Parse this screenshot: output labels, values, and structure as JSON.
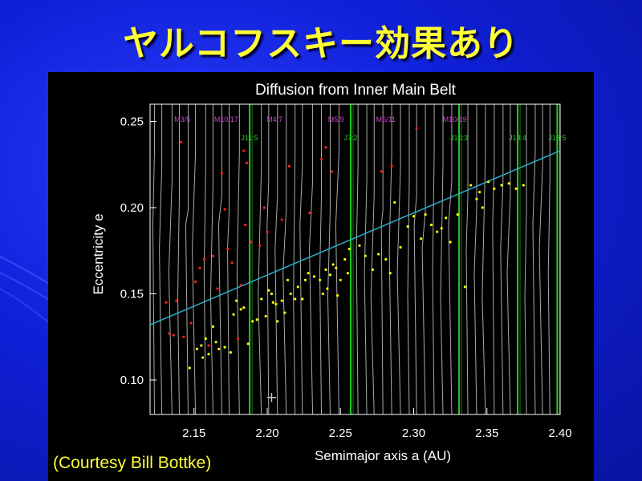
{
  "slide": {
    "title": "ヤルコフスキー効果あり",
    "courtesy": "(Courtesy Bill Bottke)"
  },
  "colors": {
    "background": "#1020d8",
    "title": "#ffff33",
    "resonance_mean_motion": "#c8c8c8",
    "resonance_jupiter": "#22cc22",
    "resonance_mars_labels": "#cc44cc",
    "trend_line": "#2ab0c8",
    "points_yellow": "#ffff00",
    "points_red": "#ff2020"
  },
  "chart_data": {
    "type": "scatter",
    "title": "Diffusion from Inner Main Belt",
    "xlabel": "Semimajor axis a (AU)",
    "ylabel": "Eccentricity e",
    "xlim": [
      2.12,
      2.4
    ],
    "ylim": [
      0.08,
      0.26
    ],
    "xticks": [
      "2.15",
      "2.20",
      "2.25",
      "2.30",
      "2.35",
      "2.40"
    ],
    "yticks": [
      "0.10",
      "0.15",
      "0.20",
      "0.25"
    ],
    "grid": false,
    "resonance_labels_magenta": [
      {
        "label": "M3/5",
        "a": 2.142
      },
      {
        "label": "M10/17",
        "a": 2.172
      },
      {
        "label": "M4/7",
        "a": 2.205
      },
      {
        "label": "M5/9",
        "a": 2.247
      },
      {
        "label": "M6/11",
        "a": 2.281
      },
      {
        "label": "M10/19",
        "a": 2.328
      }
    ],
    "resonance_labels_green": [
      {
        "label": "J11:5",
        "a": 2.188
      },
      {
        "label": "J7:2",
        "a": 2.257
      },
      {
        "label": "J10:3",
        "a": 2.331
      },
      {
        "label": "J13:4",
        "a": 2.371
      },
      {
        "label": "J16:5",
        "a": 2.398
      }
    ],
    "jupiter_resonance_a": [
      2.188,
      2.257,
      2.331,
      2.371,
      2.398
    ],
    "fine_resonance_a": [
      2.123,
      2.128,
      2.135,
      2.14,
      2.146,
      2.151,
      2.158,
      2.163,
      2.169,
      2.174,
      2.181,
      2.196,
      2.201,
      2.207,
      2.213,
      2.219,
      2.224,
      2.231,
      2.237,
      2.243,
      2.249,
      2.262,
      2.268,
      2.273,
      2.279,
      2.285,
      2.291,
      2.297,
      2.302,
      2.308,
      2.314,
      2.32,
      2.326,
      2.337,
      2.343,
      2.349,
      2.355,
      2.361,
      2.366,
      2.377,
      2.383,
      2.388,
      2.393
    ],
    "trend_line": {
      "a": [
        2.12,
        2.4
      ],
      "e": [
        0.132,
        0.233
      ]
    },
    "marker": {
      "label": "+",
      "a": 2.203,
      "e": 0.09
    },
    "series": [
      {
        "color": "yellow",
        "points": [
          [
            2.147,
            0.107
          ],
          [
            2.152,
            0.118
          ],
          [
            2.155,
            0.12
          ],
          [
            2.156,
            0.113
          ],
          [
            2.158,
            0.124
          ],
          [
            2.16,
            0.115
          ],
          [
            2.163,
            0.131
          ],
          [
            2.165,
            0.122
          ],
          [
            2.167,
            0.118
          ],
          [
            2.171,
            0.119
          ],
          [
            2.175,
            0.116
          ],
          [
            2.177,
            0.138
          ],
          [
            2.179,
            0.146
          ],
          [
            2.182,
            0.141
          ],
          [
            2.184,
            0.142
          ],
          [
            2.187,
            0.121
          ],
          [
            2.19,
            0.134
          ],
          [
            2.193,
            0.135
          ],
          [
            2.196,
            0.147
          ],
          [
            2.199,
            0.137
          ],
          [
            2.201,
            0.152
          ],
          [
            2.203,
            0.15
          ],
          [
            2.204,
            0.145
          ],
          [
            2.206,
            0.144
          ],
          [
            2.207,
            0.134
          ],
          [
            2.21,
            0.146
          ],
          [
            2.212,
            0.139
          ],
          [
            2.214,
            0.158
          ],
          [
            2.216,
            0.15
          ],
          [
            2.219,
            0.147
          ],
          [
            2.221,
            0.154
          ],
          [
            2.224,
            0.147
          ],
          [
            2.226,
            0.158
          ],
          [
            2.228,
            0.162
          ],
          [
            2.232,
            0.16
          ],
          [
            2.236,
            0.158
          ],
          [
            2.238,
            0.15
          ],
          [
            2.24,
            0.164
          ],
          [
            2.241,
            0.153
          ],
          [
            2.243,
            0.161
          ],
          [
            2.245,
            0.167
          ],
          [
            2.247,
            0.165
          ],
          [
            2.248,
            0.149
          ],
          [
            2.25,
            0.158
          ],
          [
            2.253,
            0.17
          ],
          [
            2.255,
            0.162
          ],
          [
            2.256,
            0.176
          ],
          [
            2.263,
            0.178
          ],
          [
            2.267,
            0.172
          ],
          [
            2.272,
            0.164
          ],
          [
            2.276,
            0.173
          ],
          [
            2.281,
            0.17
          ],
          [
            2.284,
            0.162
          ],
          [
            2.287,
            0.203
          ],
          [
            2.291,
            0.177
          ],
          [
            2.296,
            0.189
          ],
          [
            2.3,
            0.195
          ],
          [
            2.305,
            0.182
          ],
          [
            2.308,
            0.196
          ],
          [
            2.312,
            0.19
          ],
          [
            2.316,
            0.186
          ],
          [
            2.319,
            0.188
          ],
          [
            2.322,
            0.194
          ],
          [
            2.325,
            0.18
          ],
          [
            2.33,
            0.196
          ],
          [
            2.335,
            0.154
          ],
          [
            2.339,
            0.213
          ],
          [
            2.343,
            0.205
          ],
          [
            2.345,
            0.209
          ],
          [
            2.347,
            0.2
          ],
          [
            2.351,
            0.215
          ],
          [
            2.355,
            0.211
          ],
          [
            2.36,
            0.213
          ],
          [
            2.365,
            0.214
          ],
          [
            2.37,
            0.211
          ],
          [
            2.375,
            0.213
          ]
        ]
      },
      {
        "color": "red",
        "points": [
          [
            2.131,
            0.145
          ],
          [
            2.133,
            0.127
          ],
          [
            2.136,
            0.126
          ],
          [
            2.138,
            0.146
          ],
          [
            2.141,
            0.238
          ],
          [
            2.143,
            0.125
          ],
          [
            2.148,
            0.133
          ],
          [
            2.151,
            0.157
          ],
          [
            2.154,
            0.165
          ],
          [
            2.157,
            0.17
          ],
          [
            2.16,
            0.12
          ],
          [
            2.163,
            0.172
          ],
          [
            2.166,
            0.153
          ],
          [
            2.169,
            0.22
          ],
          [
            2.171,
            0.199
          ],
          [
            2.173,
            0.176
          ],
          [
            2.176,
            0.168
          ],
          [
            2.18,
            0.124
          ],
          [
            2.182,
            0.155
          ],
          [
            2.184,
            0.233
          ],
          [
            2.186,
            0.226
          ],
          [
            2.189,
            0.18
          ],
          [
            2.195,
            0.178
          ],
          [
            2.198,
            0.2
          ],
          [
            2.2,
            0.186
          ],
          [
            2.21,
            0.193
          ],
          [
            2.215,
            0.224
          ],
          [
            2.229,
            0.197
          ],
          [
            2.237,
            0.228
          ],
          [
            2.24,
            0.235
          ],
          [
            2.244,
            0.221
          ],
          [
            2.278,
            0.221
          ],
          [
            2.285,
            0.224
          ],
          [
            2.302,
            0.246
          ],
          [
            2.185,
            0.19
          ]
        ]
      }
    ]
  }
}
